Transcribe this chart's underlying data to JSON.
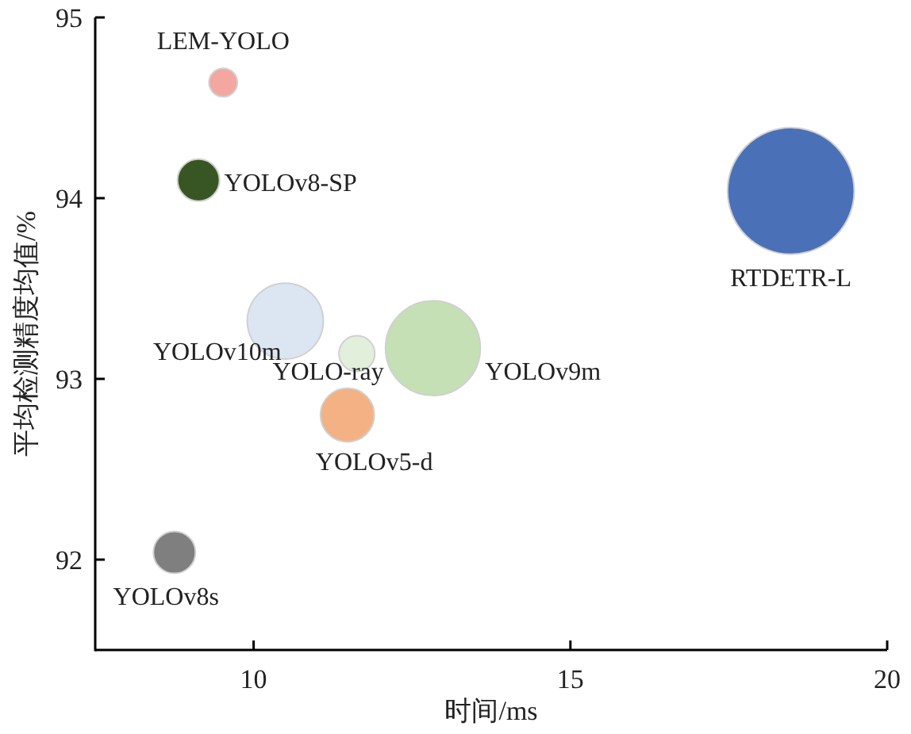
{
  "chart_data": {
    "type": "bubble",
    "xlabel": "时间/ms",
    "ylabel": "平均检测精度均值/%",
    "xlim": [
      7.5,
      20
    ],
    "xticks": [
      10,
      15,
      20
    ],
    "ylim": [
      91.5,
      95
    ],
    "yticks": [
      92,
      93,
      94,
      95
    ],
    "grid": false,
    "series": [
      {
        "name": "LEM-YOLO",
        "color": "#f4a6a0",
        "x": [
          9.52
        ],
        "values": [
          94.64
        ],
        "sizes": [
          0.05
        ]
      },
      {
        "name": "YOLOv8-SP",
        "color": "#375623",
        "x": [
          9.13
        ],
        "values": [
          94.1
        ],
        "sizes": [
          0.11
        ]
      },
      {
        "name": "RTDETR-L",
        "color": "#4a70b8",
        "x": [
          18.48
        ],
        "values": [
          94.04
        ],
        "sizes": [
          1
        ]
      },
      {
        "name": "YOLOv10m",
        "color": "#dce6f2",
        "x": [
          10.5
        ],
        "values": [
          93.32
        ],
        "sizes": [
          0.36
        ]
      },
      {
        "name": "YOLO-ray",
        "color": "#e2efda",
        "x": [
          11.63
        ],
        "values": [
          93.14
        ],
        "sizes": [
          0.08
        ]
      },
      {
        "name": "YOLOv9m",
        "color": "#c5e0b4",
        "x": [
          12.83
        ],
        "values": [
          93.17
        ],
        "sizes": [
          0.56
        ]
      },
      {
        "name": "YOLOv5-d",
        "color": "#f4b183",
        "x": [
          11.48
        ],
        "values": [
          92.8
        ],
        "sizes": [
          0.18
        ]
      },
      {
        "name": "YOLOv8s",
        "color": "#7f7f7f",
        "x": [
          8.75
        ],
        "values": [
          92.04
        ],
        "sizes": [
          0.11
        ]
      }
    ]
  }
}
